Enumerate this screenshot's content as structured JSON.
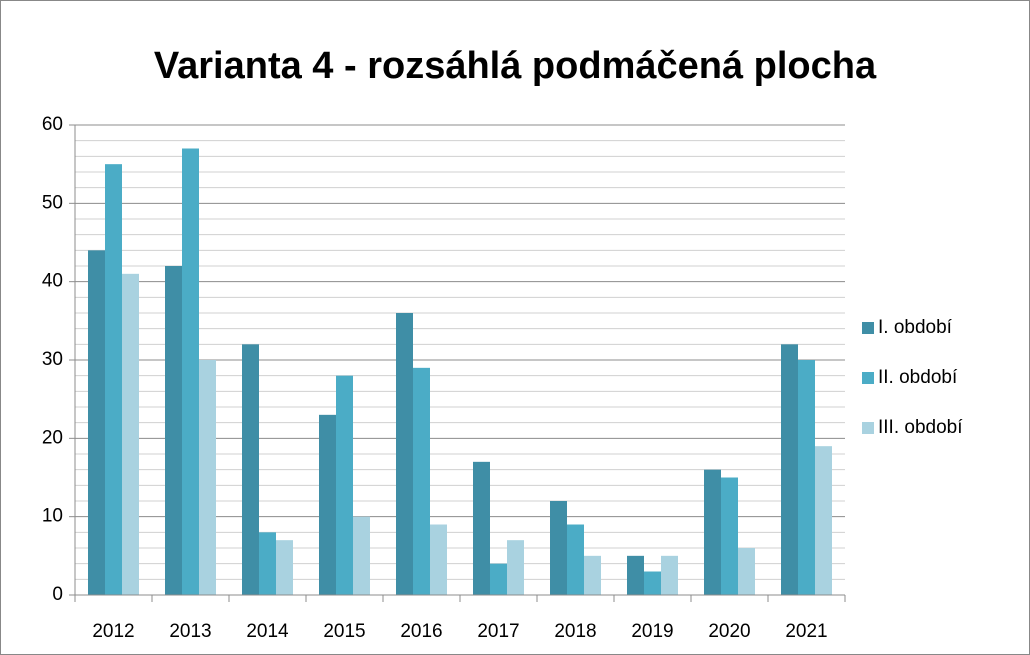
{
  "chart_data": {
    "type": "bar",
    "title": "Varianta 4 - rozsáhlá podmáčená plocha",
    "categories": [
      "2012",
      "2013",
      "2014",
      "2015",
      "2016",
      "2017",
      "2018",
      "2019",
      "2020",
      "2021"
    ],
    "series": [
      {
        "name": "I. období",
        "color": "#3f8ea6",
        "values": [
          44,
          42,
          32,
          23,
          36,
          17,
          12,
          5,
          16,
          32
        ]
      },
      {
        "name": "II. období",
        "color": "#4bacc6",
        "values": [
          55,
          57,
          8,
          28,
          29,
          4,
          9,
          3,
          15,
          30
        ]
      },
      {
        "name": "III. období",
        "color": "#a9d2e0",
        "values": [
          41,
          30,
          7,
          10,
          9,
          7,
          5,
          5,
          6,
          19
        ]
      }
    ],
    "ylim": [
      0,
      60
    ],
    "yticks": [
      0,
      10,
      20,
      30,
      40,
      50,
      60
    ],
    "yminor": [
      2,
      4,
      6,
      8,
      12,
      14,
      16,
      18,
      22,
      24,
      26,
      28,
      32,
      34,
      36,
      38,
      42,
      44,
      46,
      48,
      52,
      54,
      56,
      58
    ],
    "grid": true,
    "legend": "right"
  }
}
